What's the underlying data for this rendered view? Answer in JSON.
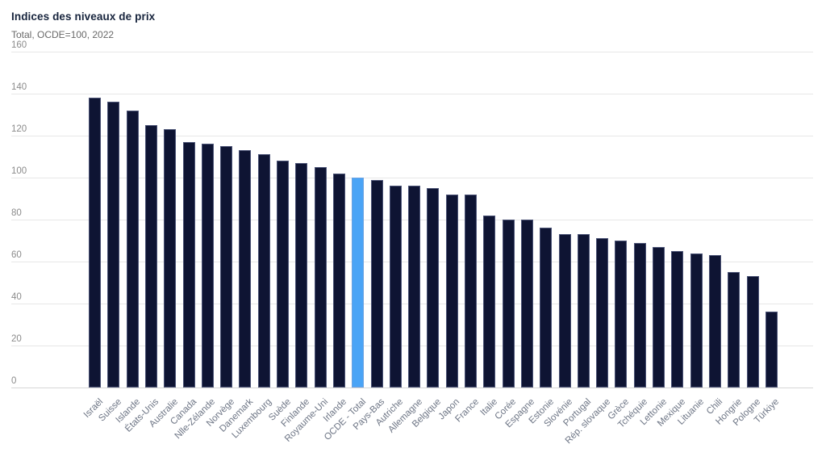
{
  "chart": {
    "title": "Indices des niveaux de prix",
    "subtitle": "Total, OCDE=100, 2022"
  },
  "chart_data": {
    "type": "bar",
    "title": "Indices des niveaux de prix",
    "subtitle": "Total, OCDE=100, 2022",
    "categories": [
      "Israël",
      "Suisse",
      "Islande",
      "États-Unis",
      "Australie",
      "Canada",
      "Nlle-Zélande",
      "Norvège",
      "Danemark",
      "Luxembourg",
      "Suède",
      "Finlande",
      "Royaume-Uni",
      "Irlande",
      "OCDE - Total",
      "Pays-Bas",
      "Autriche",
      "Allemagne",
      "Belgique",
      "Japon",
      "France",
      "Italie",
      "Corée",
      "Espagne",
      "Estonie",
      "Slovénie",
      "Portugal",
      "Rép. slovaque",
      "Grèce",
      "Tchéquie",
      "Lettonie",
      "Mexique",
      "Lituanie",
      "Chili",
      "Hongrie",
      "Pologne",
      "Türkiye"
    ],
    "values": [
      138,
      136,
      132,
      125,
      123,
      117,
      116,
      115,
      113,
      111,
      108,
      107,
      105,
      102,
      100,
      99,
      96,
      96,
      95,
      92,
      92,
      82,
      80,
      80,
      76,
      73,
      73,
      71,
      70,
      69,
      67,
      65,
      64,
      63,
      55,
      53,
      36
    ],
    "highlight_category": "OCDE - Total",
    "highlight_index": 14,
    "xlabel": "",
    "ylabel": "",
    "ylim": [
      0,
      160
    ],
    "yticks": [
      0,
      20,
      40,
      60,
      80,
      100,
      120,
      140,
      160
    ],
    "grid": true,
    "legend": "none",
    "bar_color": "#0e1433",
    "highlight_color": "#4aa4f6"
  }
}
